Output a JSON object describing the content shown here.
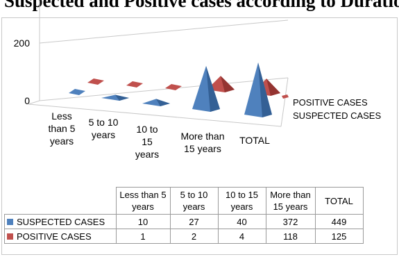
{
  "title": "Suspected and Positive cases according to Duration",
  "colors": {
    "suspected": "#4f81bd",
    "positive": "#c0504d"
  },
  "chart_data": {
    "type": "bar",
    "subtype": "3d-cone",
    "categories": [
      "Less than 5 years",
      "5 to 10 years",
      "10 to 15 years",
      "More than 15 years",
      "TOTAL"
    ],
    "series": [
      {
        "name": "SUSPECTED CASES",
        "values": [
          10,
          27,
          40,
          372,
          449
        ]
      },
      {
        "name": "POSITIVE CASES",
        "values": [
          1,
          2,
          4,
          118,
          125
        ]
      }
    ],
    "yticks": [
      0,
      200,
      400,
      600
    ],
    "ylim": [
      0,
      600
    ],
    "grid": true,
    "legend": "right"
  },
  "table": {
    "headers": [
      "Less than 5 years",
      "5 to 10 years",
      "10 to 15 years",
      "More than 15 years",
      "TOTAL"
    ],
    "rows": [
      {
        "label": "SUSPECTED CASES",
        "values": [
          "10",
          "27",
          "40",
          "372",
          "449"
        ]
      },
      {
        "label": "POSITIVE CASES",
        "values": [
          "1",
          "2",
          "4",
          "118",
          "125"
        ]
      }
    ]
  }
}
